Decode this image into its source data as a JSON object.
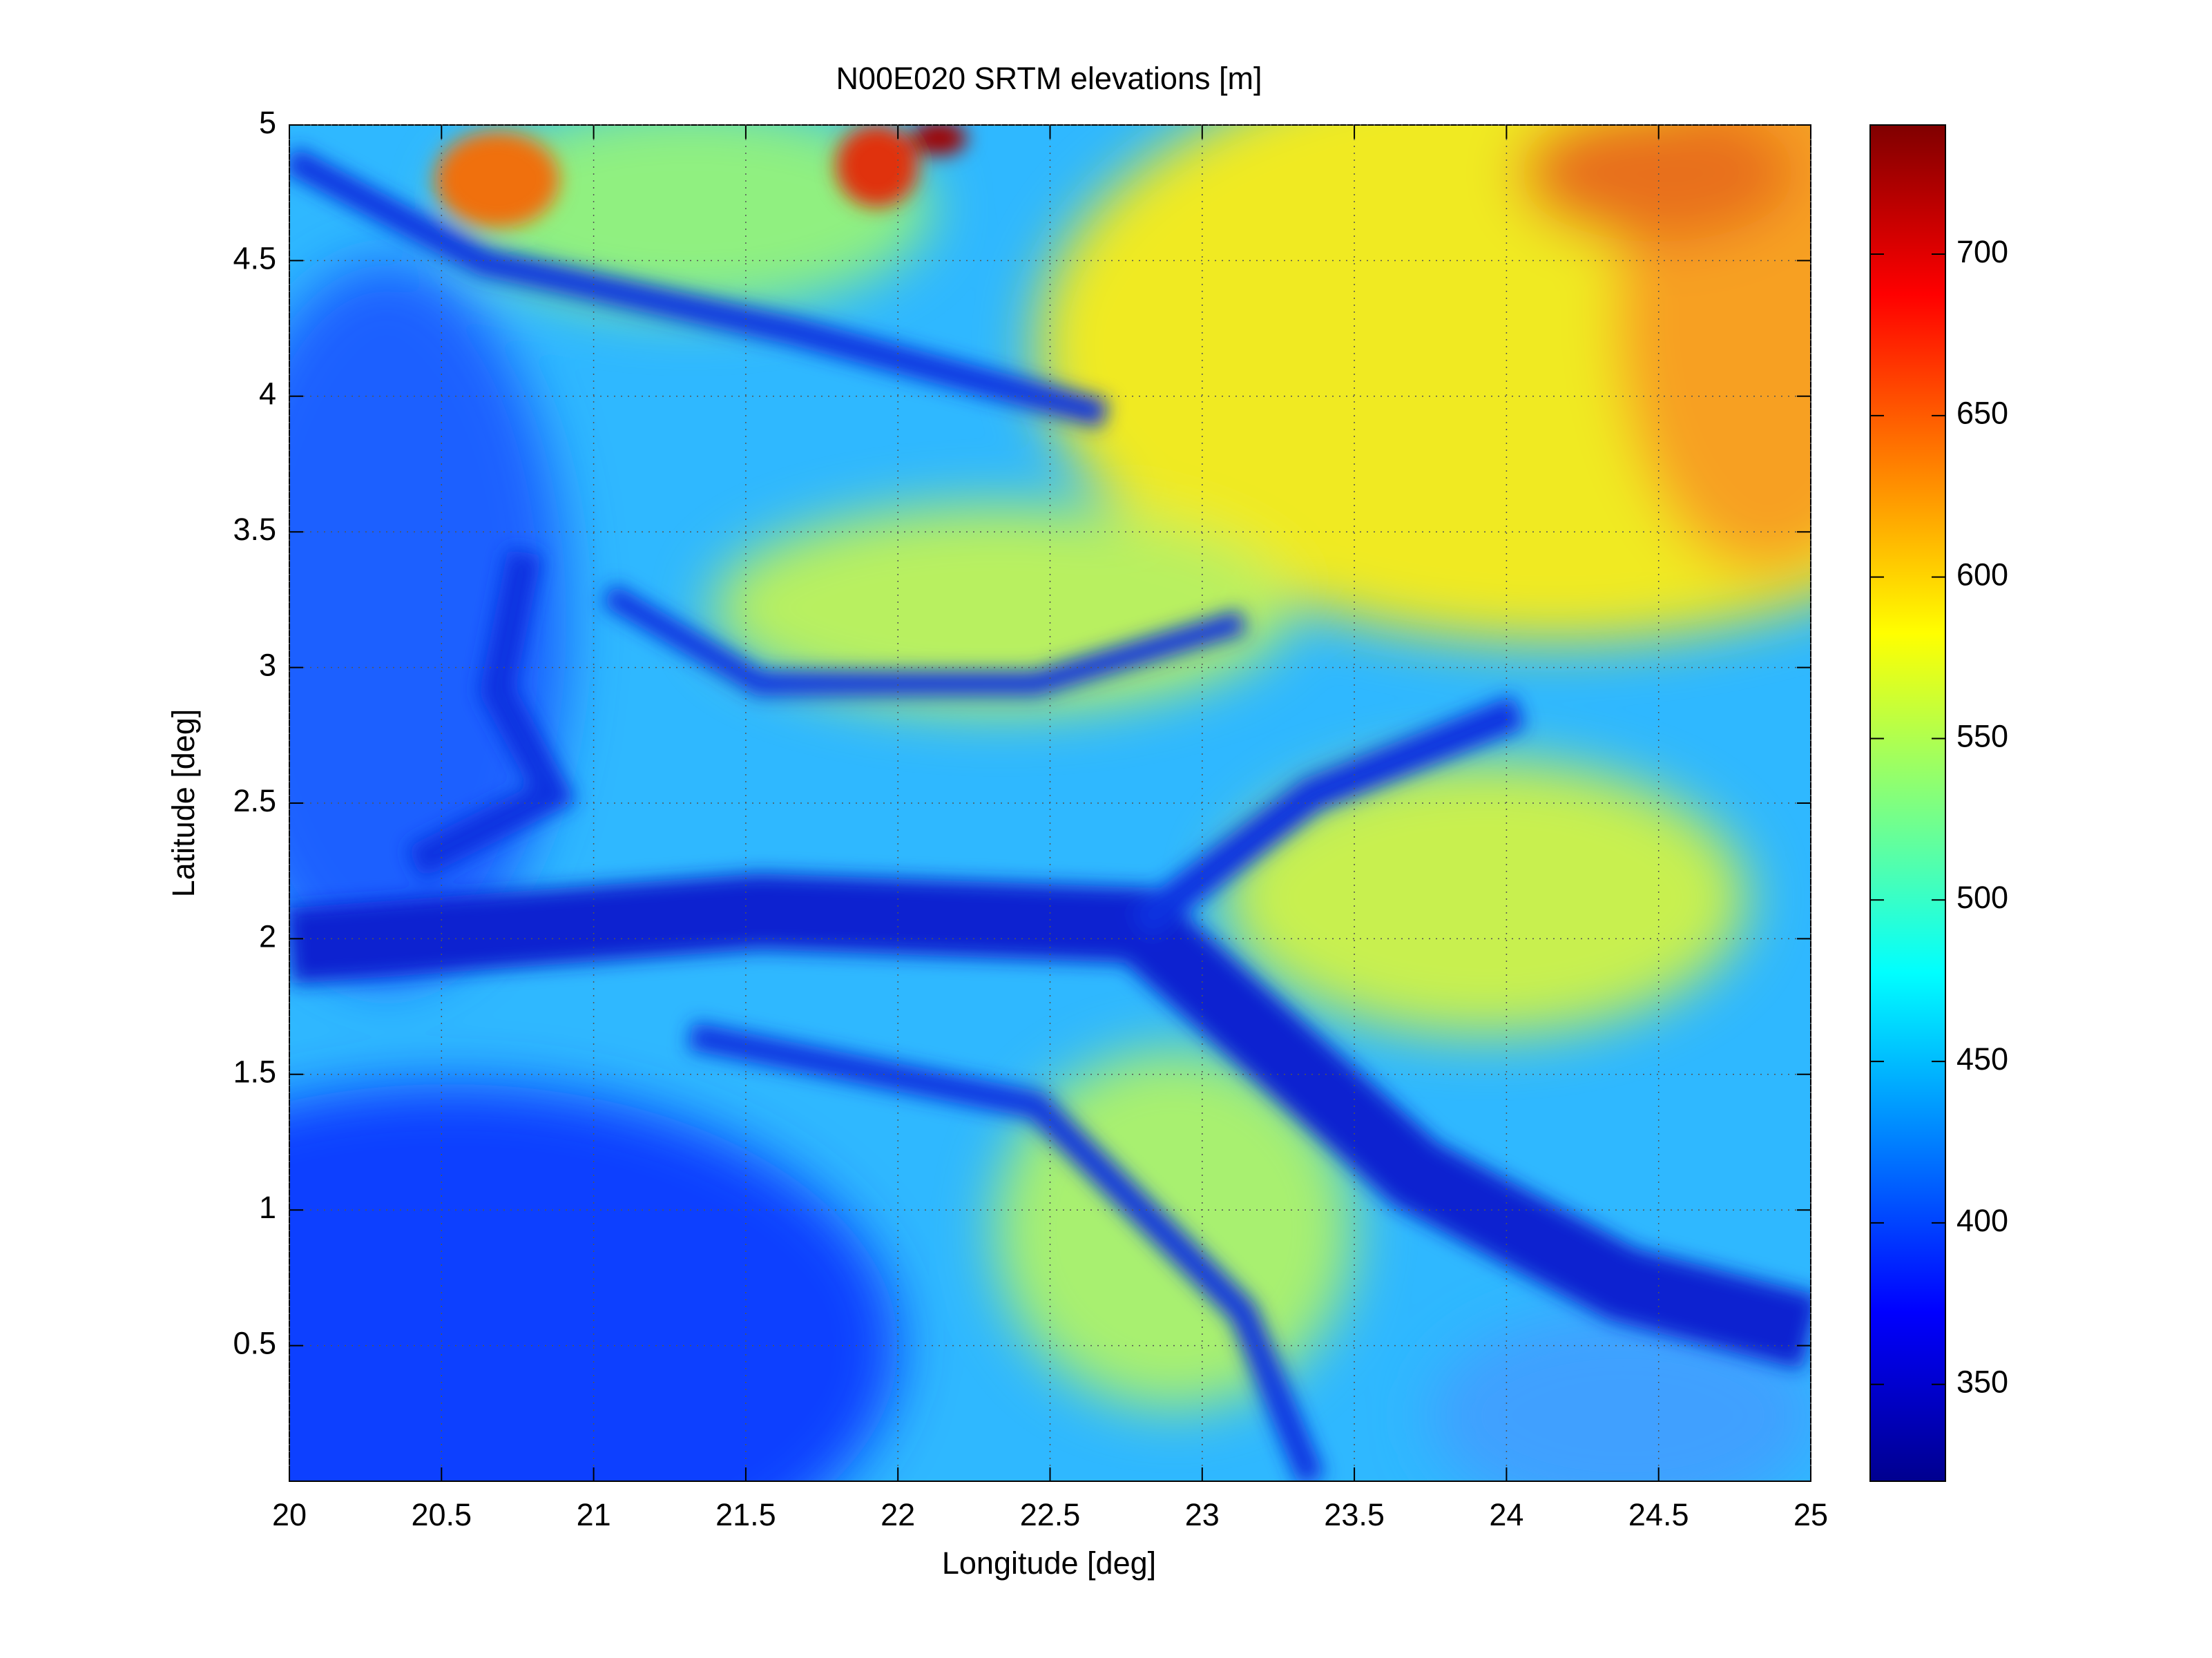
{
  "chart_data": {
    "type": "heatmap",
    "title": "N00E020 SRTM elevations [m]",
    "x_label": "Longitude [deg]",
    "y_label": "Latitude [deg]",
    "xlim": [
      20,
      25
    ],
    "xticks": [
      20,
      20.5,
      21,
      21.5,
      22,
      22.5,
      23,
      23.5,
      24,
      24.5,
      25
    ],
    "ylim": [
      0,
      5
    ],
    "yticks": [
      0.5,
      1,
      1.5,
      2,
      2.5,
      3,
      3.5,
      4,
      4.5,
      5
    ],
    "grid": true,
    "colormap": "jet",
    "clim": [
      320,
      740
    ],
    "cticks": [
      350,
      400,
      450,
      500,
      550,
      600,
      650,
      700
    ]
  }
}
